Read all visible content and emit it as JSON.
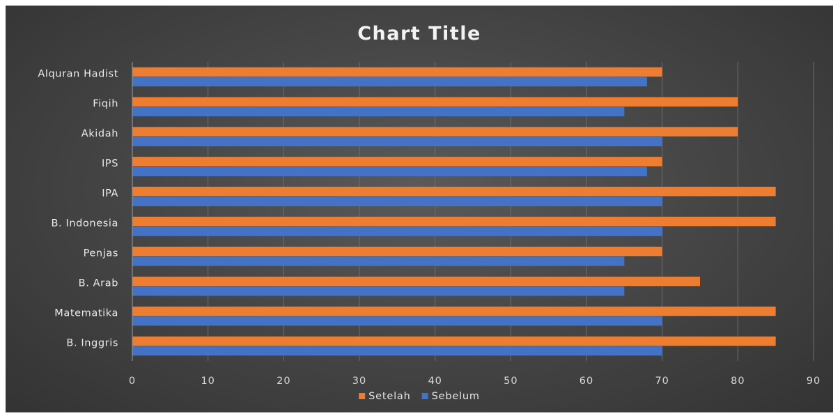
{
  "chart_data": {
    "type": "bar",
    "orientation": "horizontal",
    "title": "Chart Title",
    "categories": [
      "Alquran Hadist",
      "Fiqih",
      "Akidah",
      "IPS",
      "IPA",
      "B. Indonesia",
      "Penjas",
      "B. Arab",
      "Matematika",
      "B. Inggris"
    ],
    "series": [
      {
        "name": "Setelah",
        "color": "#ed7d31",
        "values": [
          70,
          80,
          80,
          70,
          85,
          85,
          70,
          75,
          85,
          85
        ]
      },
      {
        "name": "Sebelum",
        "color": "#4472c4",
        "values": [
          68,
          65,
          70,
          68,
          70,
          70,
          65,
          65,
          70,
          70
        ]
      }
    ],
    "xlim": [
      0,
      90
    ],
    "ticks": [
      "0",
      "10",
      "20",
      "30",
      "40",
      "50",
      "60",
      "70",
      "80",
      "90"
    ],
    "grid": true,
    "legend_position": "bottom",
    "background": "#474747"
  }
}
